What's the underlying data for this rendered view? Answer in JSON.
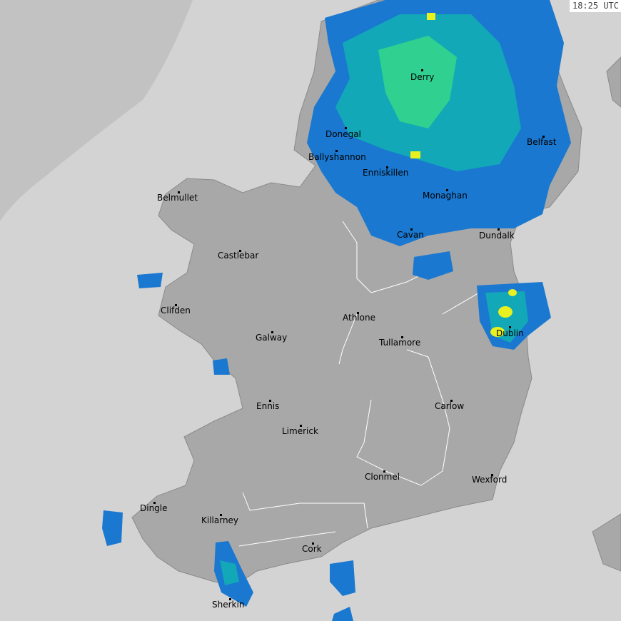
{
  "timestamp": "18:25 UTC",
  "colors": {
    "sea": "#d3d3d3",
    "out_of_range": "#c2c2c2",
    "land": "#a8a8a8",
    "border": "#ffffff",
    "radar_light": "#1a78d0",
    "radar_moderate": "#12a8b8",
    "radar_heavy": "#30d090",
    "radar_intense": "#e8f020"
  },
  "cities": [
    {
      "name": "Derry"
    },
    {
      "name": "Donegal"
    },
    {
      "name": "Ballyshannon"
    },
    {
      "name": "Enniskillen"
    },
    {
      "name": "Belfast"
    },
    {
      "name": "Monaghan"
    },
    {
      "name": "Belmullet"
    },
    {
      "name": "Cavan"
    },
    {
      "name": "Dundalk"
    },
    {
      "name": "Castlebar"
    },
    {
      "name": "Clifden"
    },
    {
      "name": "Athlone"
    },
    {
      "name": "Dublin"
    },
    {
      "name": "Galway"
    },
    {
      "name": "Tullamore"
    },
    {
      "name": "Ennis"
    },
    {
      "name": "Carlow"
    },
    {
      "name": "Limerick"
    },
    {
      "name": "Clonmel"
    },
    {
      "name": "Wexford"
    },
    {
      "name": "Dingle"
    },
    {
      "name": "Killarney"
    },
    {
      "name": "Cork"
    },
    {
      "name": "Sherkin"
    }
  ]
}
